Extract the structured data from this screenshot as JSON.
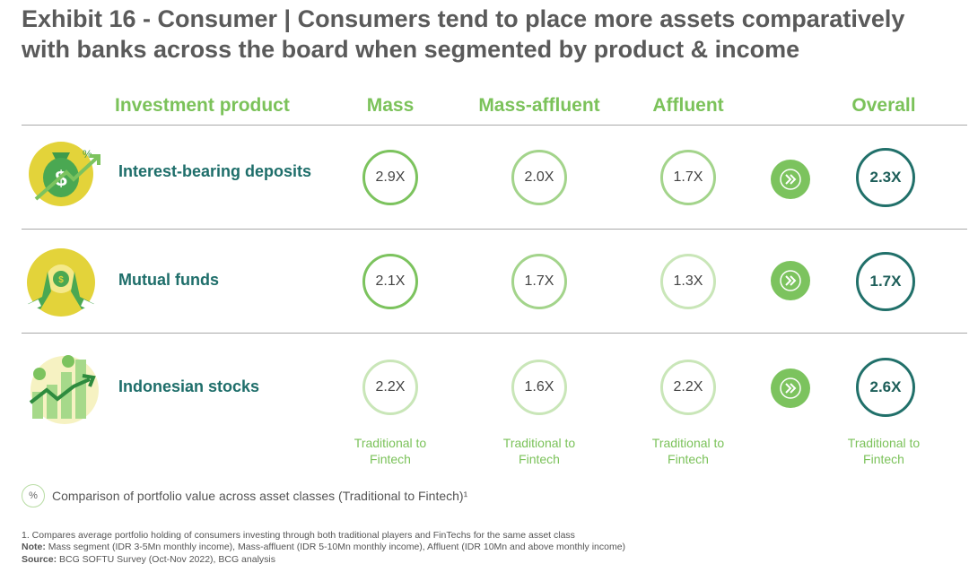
{
  "title": "Exhibit 16 - Consumer | Consumers tend to place more assets comparatively with banks across the board when segmented by product & income",
  "columns": {
    "product": "Investment product",
    "mass": "Mass",
    "mass_affluent": "Mass-affluent",
    "affluent": "Affluent",
    "overall": "Overall"
  },
  "rows": [
    {
      "label": "Interest-bearing deposits",
      "mass": "2.9X",
      "mass_affluent": "2.0X",
      "affluent": "1.7X",
      "overall": "2.3X",
      "icon": "money-bag-icon"
    },
    {
      "label": "Mutual funds",
      "mass": "2.1X",
      "mass_affluent": "1.7X",
      "affluent": "1.3X",
      "overall": "1.7X",
      "icon": "coin-hands-icon"
    },
    {
      "label": "Indonesian stocks",
      "mass": "2.2X",
      "mass_affluent": "1.6X",
      "affluent": "2.2X",
      "overall": "2.6X",
      "icon": "stock-chart-icon"
    }
  ],
  "sublabel": "Traditional to Fintech",
  "legend": {
    "badge": "%",
    "text": "Comparison of portfolio value across asset classes (Traditional to Fintech)¹"
  },
  "footnotes": {
    "note1": "1. Compares average portfolio holding of consumers investing through both traditional players and FinTechs for the same asset class",
    "note_label": "Note:",
    "note_text": " Mass segment (IDR 3-5Mn monthly income), Mass-affluent (IDR 5-10Mn monthly income), Affluent (IDR 10Mn and above monthly income)",
    "source_label": "Source:",
    "source_text": " BCG SOFTU Survey (Oct-Nov 2022), BCG analysis"
  },
  "colors": {
    "green": "#7cc35e",
    "dark_teal": "#21706a",
    "yellow": "#e3d33a"
  },
  "chart_data": {
    "type": "table",
    "title": "Exhibit 16 - Consumer | Consumers tend to place more assets comparatively with banks across the board when segmented by product & income",
    "metric": "Portfolio value ratio, Traditional to Fintech (X)",
    "categories": [
      "Interest-bearing deposits",
      "Mutual funds",
      "Indonesian stocks"
    ],
    "series": [
      {
        "name": "Mass",
        "values": [
          2.9,
          2.1,
          2.2
        ]
      },
      {
        "name": "Mass-affluent",
        "values": [
          2.0,
          1.7,
          1.6
        ]
      },
      {
        "name": "Affluent",
        "values": [
          1.7,
          1.3,
          2.2
        ]
      },
      {
        "name": "Overall",
        "values": [
          2.3,
          1.7,
          2.6
        ]
      }
    ]
  }
}
